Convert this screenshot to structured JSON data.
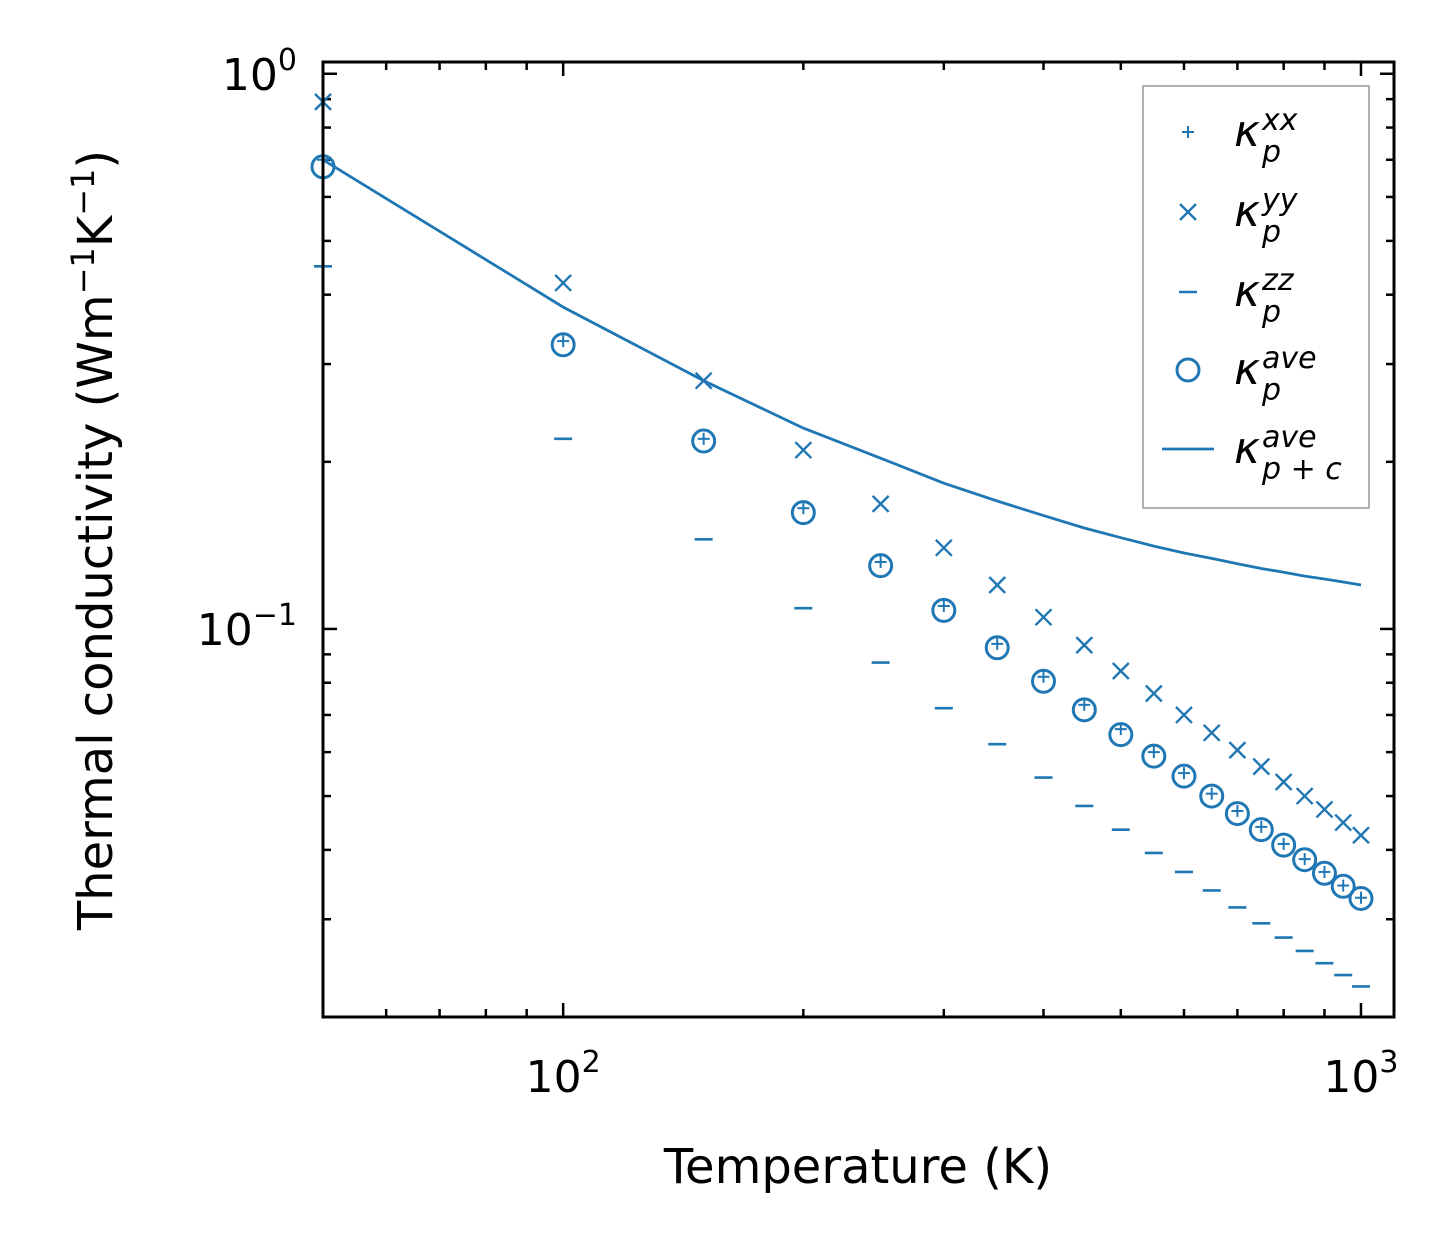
{
  "chart_data": {
    "type": "scatter",
    "xscale": "log",
    "yscale": "log",
    "xlim": [
      50,
      1100
    ],
    "ylim": [
      0.02,
      1.05
    ],
    "xlabel": "Temperature (K)",
    "ylabel": {
      "text": "Thermal conductivity (Wm",
      "sup1": "−1",
      "mid": "K",
      "sup2": "−1",
      "end": ")"
    },
    "x_ticks": [
      {
        "value": 100,
        "base": "10",
        "exp": "2"
      },
      {
        "value": 1000,
        "base": "10",
        "exp": "3"
      }
    ],
    "y_ticks": [
      {
        "value": 0.1,
        "base": "10",
        "exp": "−1"
      },
      {
        "value": 1,
        "base": "10",
        "exp": "0"
      }
    ],
    "color": "#1f77b4",
    "x": [
      50,
      100,
      150,
      200,
      250,
      300,
      350,
      400,
      450,
      500,
      550,
      600,
      650,
      700,
      750,
      800,
      850,
      900,
      950,
      1000
    ],
    "series": [
      {
        "name": "kappa_p_xx",
        "marker": "plus",
        "values": [
          0.7,
          0.33,
          0.22,
          0.165,
          0.132,
          0.11,
          0.094,
          0.082,
          0.073,
          0.066,
          0.06,
          0.055,
          0.0505,
          0.047,
          0.044,
          0.041,
          0.0385,
          0.0365,
          0.0345,
          0.0328
        ],
        "legend": {
          "symbol": "κ",
          "sub": "p",
          "sup": "xx"
        }
      },
      {
        "name": "kappa_p_yy",
        "marker": "x",
        "values": [
          0.89,
          0.42,
          0.28,
          0.21,
          0.168,
          0.14,
          0.12,
          0.105,
          0.0935,
          0.084,
          0.0765,
          0.07,
          0.065,
          0.0605,
          0.0565,
          0.053,
          0.05,
          0.0473,
          0.0448,
          0.0425
        ],
        "legend": {
          "symbol": "κ",
          "sub": "p",
          "sup": "yy"
        }
      },
      {
        "name": "kappa_p_zz",
        "marker": "hline",
        "values": [
          0.45,
          0.22,
          0.145,
          0.109,
          0.087,
          0.072,
          0.062,
          0.054,
          0.048,
          0.0435,
          0.0395,
          0.0365,
          0.0338,
          0.0315,
          0.0295,
          0.0278,
          0.0263,
          0.025,
          0.0238,
          0.0227
        ],
        "legend": {
          "symbol": "κ",
          "sub": "p",
          "sup": "zz"
        }
      },
      {
        "name": "kappa_p_ave",
        "marker": "circle",
        "values": [
          0.68,
          0.325,
          0.218,
          0.162,
          0.13,
          0.108,
          0.0925,
          0.0805,
          0.0715,
          0.0645,
          0.059,
          0.0543,
          0.05,
          0.0465,
          0.0435,
          0.0408,
          0.0384,
          0.0363,
          0.0344,
          0.0327
        ],
        "legend": {
          "symbol": "κ",
          "sub": "p",
          "sup": "ave"
        }
      },
      {
        "name": "kappa_p_plus_c_ave",
        "marker": "line",
        "values": [
          0.7,
          0.38,
          0.28,
          0.23,
          0.203,
          0.183,
          0.17,
          0.16,
          0.152,
          0.146,
          0.141,
          0.137,
          0.134,
          0.131,
          0.1285,
          0.1265,
          0.1245,
          0.123,
          0.1215,
          0.12
        ],
        "legend": {
          "symbol": "κ",
          "sub": "p + c",
          "sup": "ave"
        }
      }
    ]
  }
}
